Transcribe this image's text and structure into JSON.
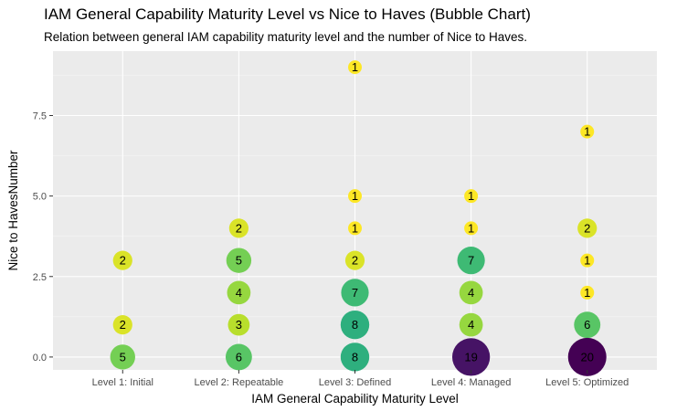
{
  "chart_data": {
    "type": "scatter",
    "title": "IAM General Capability Maturity Level vs Nice to Haves (Bubble Chart)",
    "subtitle": "Relation between general IAM capability maturity level and the number of Nice to Haves.",
    "xlabel": "IAM General Capability Maturity Level",
    "ylabel": "Nice to HavesNumber",
    "categories": [
      "Level 1: Initial",
      "Level 2: Repeatable",
      "Level 3: Defined",
      "Level 4: Managed",
      "Level 5: Optimized"
    ],
    "yticks": [
      0.0,
      2.5,
      5.0,
      7.5
    ],
    "ytick_labels": [
      "0.0",
      "2.5",
      "5.0",
      "7.5"
    ],
    "ylim": [
      -0.4,
      9.5
    ],
    "grid": true,
    "background": "#ebebeb",
    "color_scale": "viridis",
    "count_range": [
      1,
      20
    ],
    "points": [
      {
        "x": "Level 1: Initial",
        "y": 0,
        "count": 5
      },
      {
        "x": "Level 1: Initial",
        "y": 1,
        "count": 2
      },
      {
        "x": "Level 1: Initial",
        "y": 3,
        "count": 2
      },
      {
        "x": "Level 2: Repeatable",
        "y": 0,
        "count": 6
      },
      {
        "x": "Level 2: Repeatable",
        "y": 1,
        "count": 3
      },
      {
        "x": "Level 2: Repeatable",
        "y": 2,
        "count": 4
      },
      {
        "x": "Level 2: Repeatable",
        "y": 3,
        "count": 5
      },
      {
        "x": "Level 2: Repeatable",
        "y": 4,
        "count": 2
      },
      {
        "x": "Level 3: Defined",
        "y": 0,
        "count": 8
      },
      {
        "x": "Level 3: Defined",
        "y": 1,
        "count": 8
      },
      {
        "x": "Level 3: Defined",
        "y": 2,
        "count": 7
      },
      {
        "x": "Level 3: Defined",
        "y": 3,
        "count": 2
      },
      {
        "x": "Level 3: Defined",
        "y": 4,
        "count": 1
      },
      {
        "x": "Level 3: Defined",
        "y": 5,
        "count": 1
      },
      {
        "x": "Level 3: Defined",
        "y": 9,
        "count": 1
      },
      {
        "x": "Level 4: Managed",
        "y": 0,
        "count": 19
      },
      {
        "x": "Level 4: Managed",
        "y": 1,
        "count": 4
      },
      {
        "x": "Level 4: Managed",
        "y": 2,
        "count": 4
      },
      {
        "x": "Level 4: Managed",
        "y": 3,
        "count": 7
      },
      {
        "x": "Level 4: Managed",
        "y": 4,
        "count": 1
      },
      {
        "x": "Level 4: Managed",
        "y": 5,
        "count": 1
      },
      {
        "x": "Level 5: Optimized",
        "y": 0,
        "count": 20
      },
      {
        "x": "Level 5: Optimized",
        "y": 1,
        "count": 6
      },
      {
        "x": "Level 5: Optimized",
        "y": 2,
        "count": 1
      },
      {
        "x": "Level 5: Optimized",
        "y": 3,
        "count": 1
      },
      {
        "x": "Level 5: Optimized",
        "y": 4,
        "count": 2
      },
      {
        "x": "Level 5: Optimized",
        "y": 7,
        "count": 1
      }
    ]
  }
}
